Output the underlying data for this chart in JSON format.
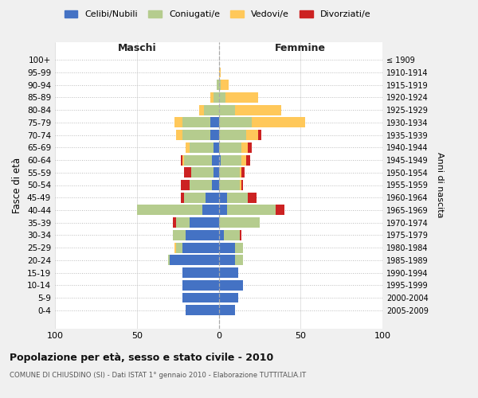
{
  "age_groups": [
    "0-4",
    "5-9",
    "10-14",
    "15-19",
    "20-24",
    "25-29",
    "30-34",
    "35-39",
    "40-44",
    "45-49",
    "50-54",
    "55-59",
    "60-64",
    "65-69",
    "70-74",
    "75-79",
    "80-84",
    "85-89",
    "90-94",
    "95-99",
    "100+"
  ],
  "birth_years": [
    "2005-2009",
    "2000-2004",
    "1995-1999",
    "1990-1994",
    "1985-1989",
    "1980-1984",
    "1975-1979",
    "1970-1974",
    "1965-1969",
    "1960-1964",
    "1955-1959",
    "1950-1954",
    "1945-1949",
    "1940-1944",
    "1935-1939",
    "1930-1934",
    "1925-1929",
    "1920-1924",
    "1915-1919",
    "1910-1914",
    "≤ 1909"
  ],
  "maschi": {
    "celibi": [
      20,
      22,
      22,
      22,
      30,
      22,
      20,
      18,
      10,
      8,
      4,
      3,
      4,
      3,
      5,
      5,
      0,
      0,
      0,
      0,
      0
    ],
    "coniugati": [
      0,
      0,
      0,
      0,
      1,
      4,
      8,
      8,
      40,
      13,
      14,
      14,
      17,
      15,
      17,
      17,
      9,
      3,
      1,
      0,
      0
    ],
    "vedovi": [
      0,
      0,
      0,
      0,
      0,
      1,
      0,
      0,
      0,
      0,
      0,
      0,
      1,
      2,
      4,
      5,
      3,
      2,
      0,
      0,
      0
    ],
    "divorziati": [
      0,
      0,
      0,
      0,
      0,
      0,
      0,
      2,
      0,
      2,
      5,
      4,
      1,
      0,
      0,
      0,
      0,
      0,
      0,
      0,
      0
    ]
  },
  "femmine": {
    "nubili": [
      10,
      12,
      15,
      12,
      10,
      10,
      3,
      0,
      5,
      5,
      0,
      0,
      1,
      0,
      0,
      0,
      0,
      0,
      0,
      0,
      0
    ],
    "coniugate": [
      0,
      0,
      0,
      0,
      5,
      5,
      10,
      25,
      30,
      13,
      13,
      13,
      13,
      14,
      17,
      20,
      10,
      4,
      1,
      0,
      0
    ],
    "vedove": [
      0,
      0,
      0,
      0,
      0,
      0,
      0,
      0,
      0,
      0,
      1,
      1,
      3,
      4,
      7,
      33,
      28,
      20,
      5,
      1,
      0
    ],
    "divorziate": [
      0,
      0,
      0,
      0,
      0,
      0,
      1,
      0,
      5,
      5,
      1,
      2,
      2,
      2,
      2,
      0,
      0,
      0,
      0,
      0,
      0
    ]
  },
  "colors": {
    "celibi_nubili": "#4472c4",
    "coniugati": "#b5cc8e",
    "vedovi": "#ffc85a",
    "divorziati": "#cc2222"
  },
  "xlim": 100,
  "title": "Popolazione per età, sesso e stato civile - 2010",
  "subtitle": "COMUNE DI CHIUSDINO (SI) - Dati ISTAT 1° gennaio 2010 - Elaborazione TUTTITALIA.IT",
  "ylabel_left": "Fasce di età",
  "ylabel_right": "Anni di nascita",
  "xlabel_maschi": "Maschi",
  "xlabel_femmine": "Femmine",
  "legend_labels": [
    "Celibi/Nubili",
    "Coniugati/e",
    "Vedovi/e",
    "Divorziati/e"
  ],
  "bg_color": "#f0f0f0",
  "plot_bg": "#ffffff"
}
